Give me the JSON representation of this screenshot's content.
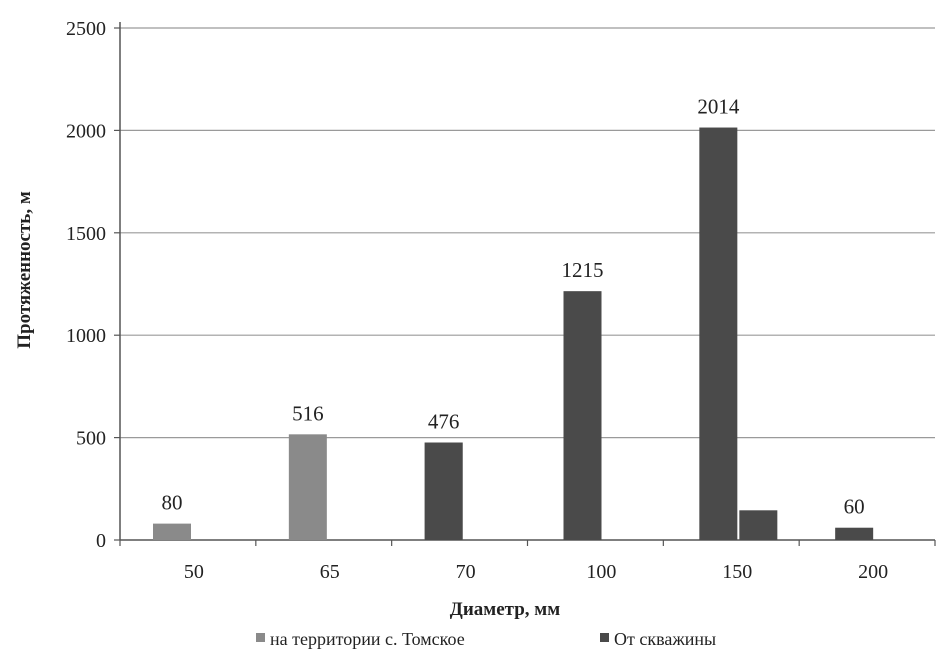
{
  "chart_data": {
    "type": "bar",
    "title": "",
    "xlabel": "Диаметр, мм",
    "ylabel": "Протяженность, м",
    "categories": [
      "50",
      "65",
      "70",
      "100",
      "150",
      "200"
    ],
    "ylim": [
      0,
      2500
    ],
    "yticks": [
      0,
      500,
      1000,
      1500,
      2000,
      2500
    ],
    "grid": true,
    "legend_position": "bottom",
    "series": [
      {
        "name": "на территории с. Томское",
        "color": "#8a8a8a",
        "values": [
          80,
          516,
          476,
          null,
          null,
          null
        ],
        "labels": [
          "80",
          "516",
          null,
          null,
          null,
          null
        ]
      },
      {
        "name": "От скважины",
        "color": "#4a4a4a",
        "values": [
          null,
          null,
          476,
          1215,
          2014,
          60
        ],
        "labels": [
          null,
          null,
          "476",
          "1215",
          "2014",
          "60"
        ]
      },
      {
        "name": "",
        "color": "#4a4a4a",
        "values": [
          null,
          null,
          null,
          null,
          145,
          null
        ],
        "labels": [
          null,
          null,
          null,
          null,
          null,
          null
        ]
      }
    ]
  }
}
